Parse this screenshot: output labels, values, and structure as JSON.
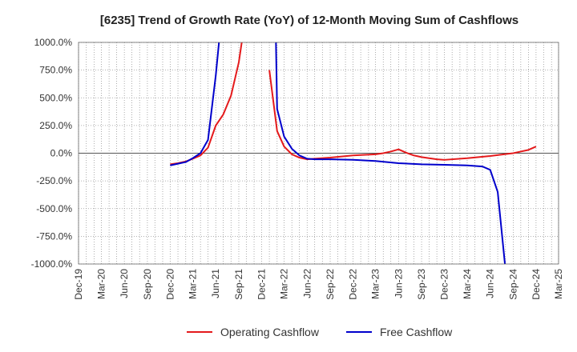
{
  "chart_data": {
    "type": "line",
    "title": "[6235]  Trend of Growth Rate (YoY) of 12-Month Moving Sum of Cashflows",
    "xlabel": "",
    "ylabel": "",
    "grid": true,
    "legend_position": "bottom",
    "x_ticks": [
      "Dec-19",
      "Mar-20",
      "Jun-20",
      "Sep-20",
      "Dec-20",
      "Mar-21",
      "Jun-21",
      "Sep-21",
      "Dec-21",
      "Mar-22",
      "Jun-22",
      "Sep-22",
      "Dec-22",
      "Mar-23",
      "Jun-23",
      "Sep-23",
      "Dec-23",
      "Mar-24",
      "Jun-24",
      "Sep-24",
      "Dec-24",
      "Mar-25"
    ],
    "y_ticks": [
      "1000.0%",
      "750.0%",
      "500.0%",
      "250.0%",
      "0.0%",
      "-250.0%",
      "-500.0%",
      "-750.0%",
      "-1000.0%"
    ],
    "ylim": [
      -1000,
      1000
    ],
    "series": [
      {
        "name": "Operating Cashflow",
        "color": "#e41a1c",
        "points": [
          {
            "x": "Dec-20",
            "y": -100
          },
          {
            "x": "Jan-21",
            "y": -90
          },
          {
            "x": "Feb-21",
            "y": -75
          },
          {
            "x": "Mar-21",
            "y": -50
          },
          {
            "x": "Apr-21",
            "y": -20
          },
          {
            "x": "May-21",
            "y": 50
          },
          {
            "x": "Jun-21",
            "y": 250
          },
          {
            "x": "Jul-21",
            "y": 350
          },
          {
            "x": "Aug-21",
            "y": 520
          },
          {
            "x": "Sep-21",
            "y": 820
          },
          {
            "x": "Sep-21",
            "y": 1050,
            "offset_days": 15
          },
          null,
          {
            "x": "Jan-22",
            "y": 750
          },
          {
            "x": "Feb-22",
            "y": 200
          },
          {
            "x": "Mar-22",
            "y": 60
          },
          {
            "x": "Apr-22",
            "y": -10
          },
          {
            "x": "May-22",
            "y": -40
          },
          {
            "x": "Jun-22",
            "y": -55
          },
          {
            "x": "Jul-22",
            "y": -50
          },
          {
            "x": "Sep-22",
            "y": -40
          },
          {
            "x": "Dec-22",
            "y": -20
          },
          {
            "x": "Mar-23",
            "y": -10
          },
          {
            "x": "Apr-23",
            "y": 0
          },
          {
            "x": "May-23",
            "y": 15
          },
          {
            "x": "Jun-23",
            "y": 35
          },
          {
            "x": "Jul-23",
            "y": 5
          },
          {
            "x": "Aug-23",
            "y": -20
          },
          {
            "x": "Sep-23",
            "y": -35
          },
          {
            "x": "Oct-23",
            "y": -45
          },
          {
            "x": "Nov-23",
            "y": -55
          },
          {
            "x": "Dec-23",
            "y": -60
          },
          {
            "x": "Mar-24",
            "y": -45
          },
          {
            "x": "Jun-24",
            "y": -25
          },
          {
            "x": "Sep-24",
            "y": 0
          },
          {
            "x": "Oct-24",
            "y": 15
          },
          {
            "x": "Nov-24",
            "y": 30
          },
          {
            "x": "Dec-24",
            "y": 60
          }
        ]
      },
      {
        "name": "Free Cashflow",
        "color": "#0000cc",
        "points": [
          {
            "x": "Dec-20",
            "y": -110
          },
          {
            "x": "Jan-21",
            "y": -95
          },
          {
            "x": "Feb-21",
            "y": -80
          },
          {
            "x": "Mar-21",
            "y": -45
          },
          {
            "x": "Apr-21",
            "y": 0
          },
          {
            "x": "May-21",
            "y": 120
          },
          {
            "x": "Jun-21",
            "y": 700
          },
          {
            "x": "Jun-21",
            "y": 1050,
            "offset_days": 15
          },
          null,
          {
            "x": "Feb-22",
            "y": 1050,
            "offset_days": -5
          },
          {
            "x": "Feb-22",
            "y": 400
          },
          {
            "x": "Mar-22",
            "y": 150
          },
          {
            "x": "Apr-22",
            "y": 40
          },
          {
            "x": "May-22",
            "y": -20
          },
          {
            "x": "Jun-22",
            "y": -50
          },
          {
            "x": "Jul-22",
            "y": -55
          },
          {
            "x": "Sep-22",
            "y": -55
          },
          {
            "x": "Dec-22",
            "y": -60
          },
          {
            "x": "Mar-23",
            "y": -70
          },
          {
            "x": "Jun-23",
            "y": -90
          },
          {
            "x": "Sep-23",
            "y": -100
          },
          {
            "x": "Dec-23",
            "y": -105
          },
          {
            "x": "Mar-24",
            "y": -110
          },
          {
            "x": "May-24",
            "y": -120
          },
          {
            "x": "Jun-24",
            "y": -150
          },
          {
            "x": "Jul-24",
            "y": -350
          },
          {
            "x": "Aug-24",
            "y": -1050
          }
        ]
      }
    ]
  }
}
